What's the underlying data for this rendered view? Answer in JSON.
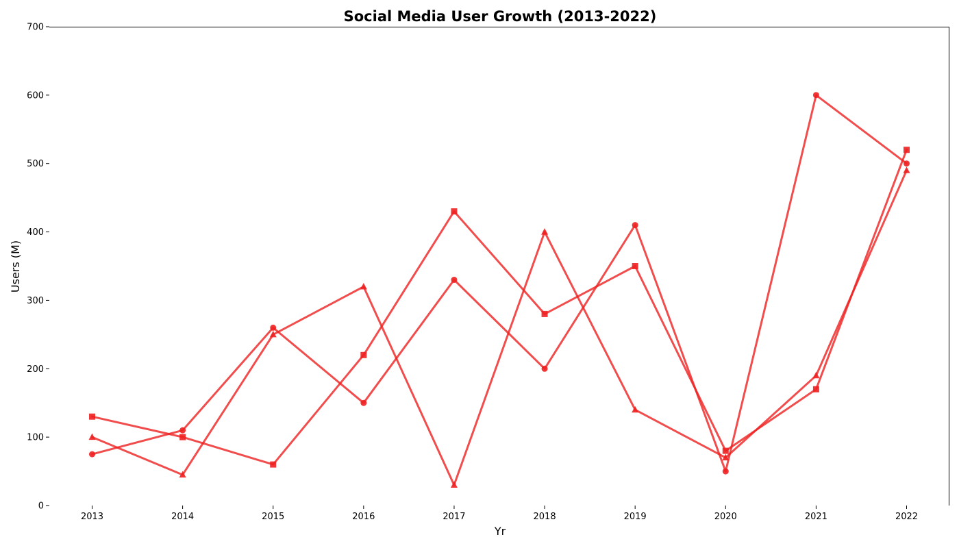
{
  "chart_data": {
    "type": "line",
    "title": "Social Media User Growth (2013-2022)",
    "xlabel": "Yr",
    "ylabel": "Users (M)",
    "x": [
      2013,
      2014,
      2015,
      2016,
      2017,
      2018,
      2019,
      2020,
      2021,
      2022
    ],
    "x_tick_labels": [
      "2013",
      "2014",
      "2015",
      "2016",
      "2017",
      "2018",
      "2019",
      "2020",
      "2021",
      "2022"
    ],
    "ylim": [
      0,
      700
    ],
    "y_ticks": [
      0,
      100,
      200,
      300,
      400,
      500,
      600,
      700
    ],
    "y_tick_labels": [
      "0",
      "100",
      "200",
      "300",
      "400",
      "500",
      "600",
      "700"
    ],
    "grid": false,
    "line_color": "#ee2020",
    "series": [
      {
        "marker": "circle",
        "values": [
          75,
          110,
          260,
          150,
          330,
          200,
          410,
          50,
          600,
          500
        ]
      },
      {
        "marker": "square",
        "values": [
          130,
          100,
          60,
          220,
          430,
          280,
          350,
          80,
          170,
          520
        ]
      },
      {
        "marker": "triangle",
        "values": [
          100,
          45,
          250,
          320,
          30,
          400,
          140,
          70,
          190,
          490
        ]
      }
    ]
  }
}
